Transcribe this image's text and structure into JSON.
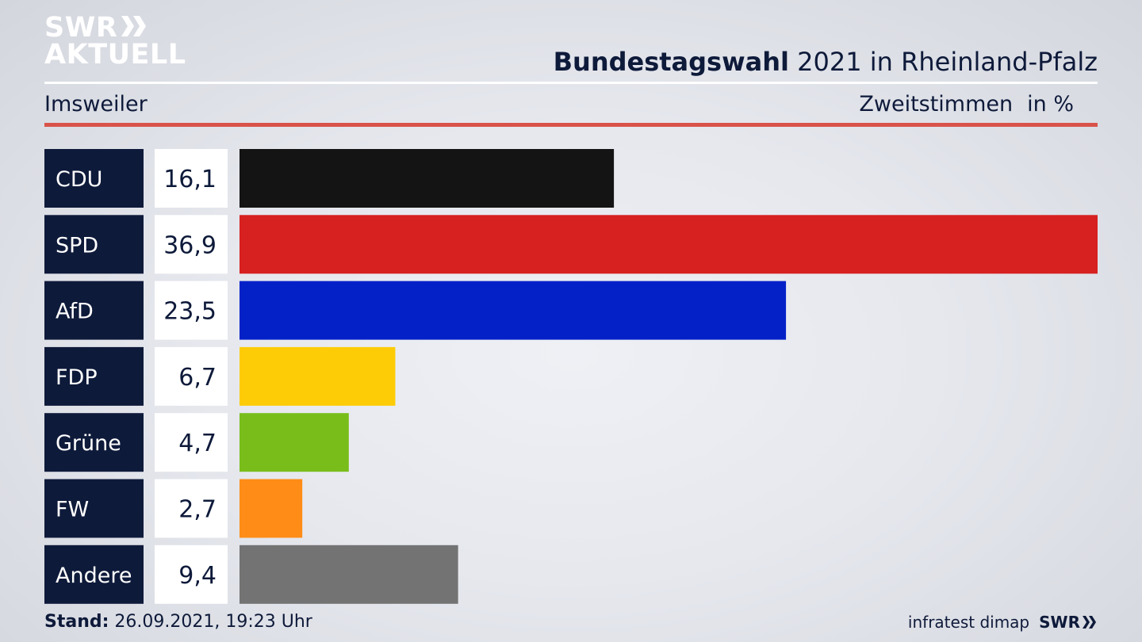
{
  "header": {
    "logo_line1": "SWR",
    "logo_line2": "AKTUELL",
    "title_bold": "Bundestagswahl",
    "title_rest": " 2021 in Rheinland-Pfalz",
    "location": "Imsweiler",
    "vote_type": "Zweitstimmen",
    "unit": "in %"
  },
  "footer": {
    "stand_label": "Stand:",
    "stand_value": " 26.09.2021, 19:23 Uhr",
    "source": "infratest dimap",
    "logo": "SWR"
  },
  "chart_data": {
    "type": "bar",
    "orientation": "horizontal",
    "categories": [
      "CDU",
      "SPD",
      "AfD",
      "FDP",
      "Grüne",
      "FW",
      "Andere"
    ],
    "values": [
      16.1,
      36.9,
      23.5,
      6.7,
      4.7,
      2.7,
      9.4
    ],
    "value_labels": [
      "16,1",
      "36,9",
      "23,5",
      "6,7",
      "4,7",
      "2,7",
      "9,4"
    ],
    "colors": [
      "#141414",
      "#d72020",
      "#0421c8",
      "#fdcc07",
      "#79bd1b",
      "#fe8c16",
      "#737373"
    ],
    "xlim": [
      0,
      36.9
    ],
    "grid": false,
    "legend": "none",
    "label_box_color": "#0e1a3a",
    "value_box_color": "#ffffff"
  }
}
